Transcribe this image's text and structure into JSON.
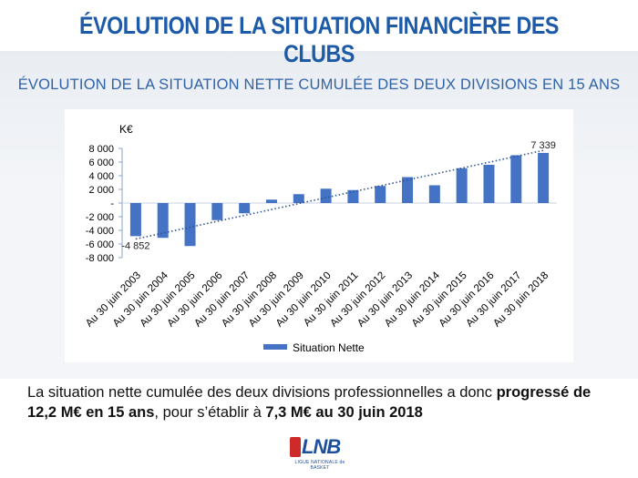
{
  "header": {
    "title": "ÉVOLUTION DE LA SITUATION FINANCIÈRE DES CLUBS",
    "subtitle": "ÉVOLUTION DE LA SITUATION NETTE CUMULÉE DES DEUX DIVISIONS EN 15 ANS"
  },
  "chart_data": {
    "type": "bar",
    "title": "",
    "ylabel": "K€",
    "xlabel": "",
    "ylim": [
      -8000,
      8000
    ],
    "yticks": [
      8000,
      6000,
      4000,
      2000,
      0,
      -2000,
      -4000,
      -6000,
      -8000
    ],
    "ytick_labels": [
      "8 000",
      "6 000",
      "4 000",
      "2 000",
      "-",
      "-2 000",
      "-4 000",
      "-6 000",
      "-8 000"
    ],
    "categories": [
      "Au 30 juin 2003",
      "Au 30 juin 2004",
      "Au 30 juin 2005",
      "Au 30 juin 2006",
      "Au 30 juin 2007",
      "Au 30 juin 2008",
      "Au 30 juin 2009",
      "Au 30 juin 2010",
      "Au 30 juin 2011",
      "Au 30 juin 2012",
      "Au 30 juin 2013",
      "Au 30 juin 2014",
      "Au 30 juin 2015",
      "Au 30 juin 2016",
      "Au 30 juin 2017",
      "Au 30 juin 2018"
    ],
    "series": [
      {
        "name": "Situation Nette",
        "color": "#4472c4",
        "values": [
          -4852,
          -5100,
          -6300,
          -2500,
          -1500,
          500,
          1300,
          2100,
          1900,
          2500,
          3800,
          2600,
          5100,
          5600,
          7000,
          7339
        ]
      }
    ],
    "data_labels": [
      {
        "index": 0,
        "text": "-4 852"
      },
      {
        "index": 15,
        "text": "7 339"
      }
    ],
    "trendline": {
      "type": "linear",
      "style": "dotted",
      "color": "#2f5597"
    },
    "legend": {
      "position": "bottom",
      "label": "Situation Nette"
    },
    "grid": false
  },
  "footer": {
    "text_part1": "La situation nette cumulée des deux divisions professionnelles a donc ",
    "text_bold1": "progressé de 12,2 M€ en 15 ans",
    "text_part2": ", pour s’établir à ",
    "text_bold2": "7,3 M€ au 30 juin 2018",
    "logo_text": "LNB",
    "logo_sub": "LIGUE NATIONALE de BASKET"
  }
}
